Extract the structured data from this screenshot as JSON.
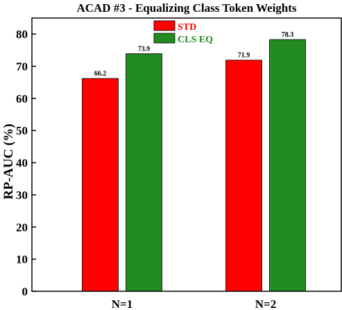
{
  "chart_data": {
    "type": "bar",
    "title": "ACAD #3 - Equalizing Class Token Weights",
    "xlabel": "",
    "ylabel": "RP-AUC (%)",
    "ylim": [
      0,
      85
    ],
    "yticks": [
      0,
      10,
      20,
      30,
      40,
      50,
      60,
      70,
      80
    ],
    "categories": [
      "N=1",
      "N=2"
    ],
    "series": [
      {
        "name": "STD",
        "color": "#ff0000",
        "values": [
          66.2,
          71.9
        ]
      },
      {
        "name": "CLS EQ",
        "color": "#228b22",
        "values": [
          73.9,
          78.3
        ]
      }
    ],
    "legend": "top-center",
    "grid": false
  }
}
